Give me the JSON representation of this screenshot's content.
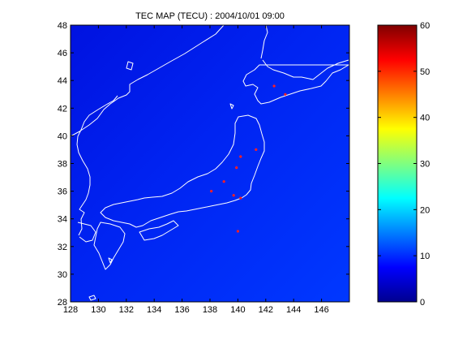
{
  "title": "TEC MAP (TECU) : 2004/10/01 09:00",
  "map": {
    "lon_range": [
      128,
      148
    ],
    "lat_range": [
      28,
      48
    ],
    "x_ticks": [
      "128",
      "130",
      "132",
      "134",
      "136",
      "138",
      "140",
      "142",
      "144",
      "146"
    ],
    "y_ticks": [
      "48",
      "46",
      "44",
      "42",
      "40",
      "38",
      "36",
      "34",
      "32",
      "30",
      "28"
    ],
    "tec_field": {
      "min_tecu": 5,
      "max_tecu": 10,
      "gradient": "increasing toward south-east"
    },
    "coastline_color": "#ffffff",
    "station_color": "#ff2020",
    "stations": [
      [
        142.6,
        43.6
      ],
      [
        143.4,
        43.0
      ],
      [
        141.3,
        39.0
      ],
      [
        140.2,
        38.5
      ],
      [
        139.9,
        37.7
      ],
      [
        139.0,
        36.7
      ],
      [
        138.1,
        36.0
      ],
      [
        139.7,
        35.7
      ],
      [
        140.2,
        35.5
      ],
      [
        140.0,
        33.1
      ]
    ]
  },
  "colorbar": {
    "range": [
      0,
      60
    ],
    "ticks": [
      "60",
      "50",
      "40",
      "30",
      "20",
      "10",
      "0"
    ],
    "colormap": "jet"
  },
  "colors": {
    "frame": "#000000",
    "background": "#ffffff"
  }
}
